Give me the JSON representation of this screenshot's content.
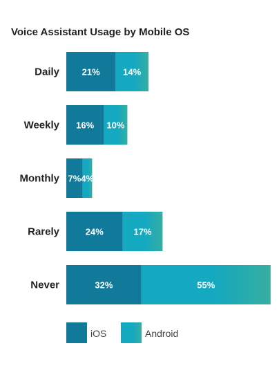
{
  "chart_data": {
    "type": "bar",
    "stacked": true,
    "orientation": "horizontal",
    "title": "Voice Assistant Usage by Mobile OS",
    "categories": [
      "Daily",
      "Weekly",
      "Monthly",
      "Rarely",
      "Never"
    ],
    "series": [
      {
        "name": "iOS",
        "values": [
          21,
          16,
          7,
          24,
          32
        ],
        "labels": [
          "21%",
          "16%",
          "7%",
          "24%",
          "32%"
        ],
        "color": "#117a9a"
      },
      {
        "name": "Android",
        "values": [
          14,
          10,
          4,
          17,
          55
        ],
        "labels": [
          "14%",
          "10%",
          "4%",
          "17%",
          "55%"
        ],
        "color": "#14a8c1",
        "gradient_to": "#36aea2"
      }
    ],
    "legend_position": "bottom-left",
    "grid": false
  }
}
